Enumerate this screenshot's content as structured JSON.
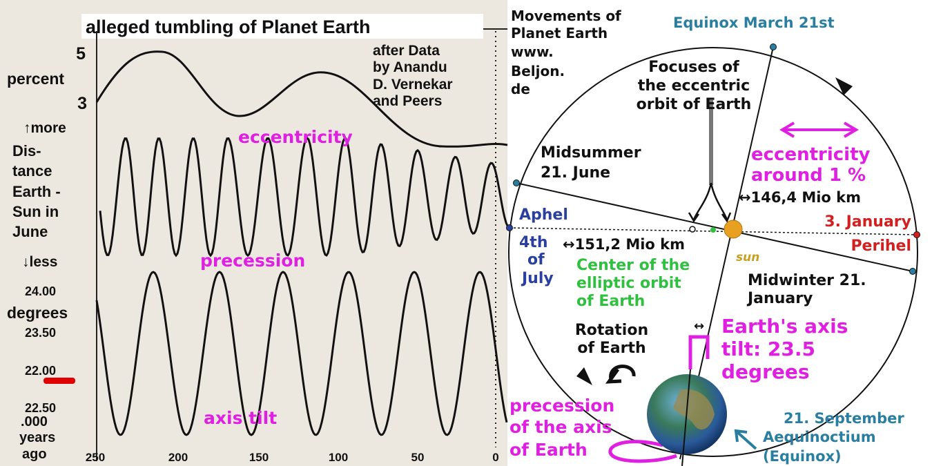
{
  "left": {
    "title": "alleged tumbling of Planet Earth",
    "eccentricity_axis": {
      "ticks": [
        "5",
        "3"
      ],
      "unit": "percent"
    },
    "distance_axis": {
      "more": "↑more",
      "lines": [
        "Dis-",
        "tance",
        "Earth -",
        "Sun in",
        "June"
      ],
      "less": "↓less"
    },
    "tilt_axis": {
      "ticks": [
        "24.00",
        "23.50",
        "22.00",
        "22.50"
      ],
      "unit": "degrees"
    },
    "time_unit": [
      ".000",
      "years",
      "ago"
    ],
    "x_ticks": [
      "250",
      "200",
      "150",
      "100",
      "50",
      "0"
    ],
    "source": [
      "after Data",
      "by Anandu",
      "D. Vernekar",
      "and Peers"
    ],
    "curve_labels": {
      "eccentricity": "eccentricity",
      "precession": "precession",
      "axis_tilt": "axis tilt"
    }
  },
  "right": {
    "credit": [
      "Movements of",
      "Planet Earth",
      "www.",
      "Beljon.",
      "de"
    ],
    "equinox_march": "Equinox March 21st",
    "focuses": [
      "Focuses of",
      "the eccentric",
      "orbit of Earth"
    ],
    "midsummer": [
      "Midsummer",
      "21. June"
    ],
    "eccentricity": [
      "eccentricity",
      "around 1 %"
    ],
    "perihel_distance": "↔146,4 Mio km",
    "aphel": "Aphel",
    "january": "3. January",
    "perihel": "Perihel",
    "july": [
      "4th",
      "of",
      "July"
    ],
    "aphel_distance": "↔151,2 Mio km",
    "center": [
      "Center of the",
      "elliptic orbit",
      "of Earth"
    ],
    "sun": "sun",
    "midwinter": [
      "Midwinter 21.",
      "January"
    ],
    "rotation": [
      "Rotation",
      "of Earth"
    ],
    "tilt_arrow": "↔",
    "axis_tilt": [
      "Earth's axis",
      "tilt: 23.5",
      "degrees"
    ],
    "precession": [
      "precession",
      "of the axis",
      "of Earth"
    ],
    "september": [
      "21. September",
      "Aequinoctium",
      "(Equinox)"
    ]
  }
}
